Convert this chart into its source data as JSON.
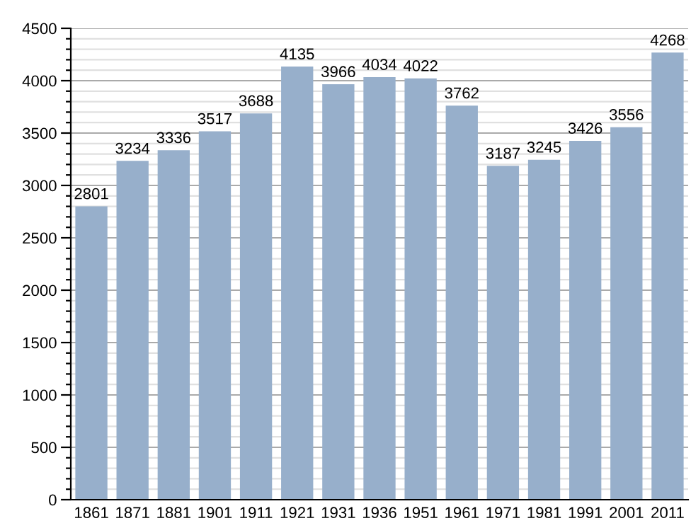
{
  "chart_data": {
    "type": "bar",
    "categories": [
      "1861",
      "1871",
      "1881",
      "1901",
      "1911",
      "1921",
      "1931",
      "1936",
      "1951",
      "1961",
      "1971",
      "1981",
      "1991",
      "2001",
      "2011"
    ],
    "values": [
      2801,
      3234,
      3336,
      3517,
      3688,
      4135,
      3966,
      4034,
      4022,
      3762,
      3187,
      3245,
      3426,
      3556,
      4268
    ],
    "color": "#97afcb",
    "data_labels": true,
    "ylim": [
      0,
      4500
    ],
    "yticks": [
      0,
      {
        "value": 100,
        "label": null
      },
      {
        "value": 200,
        "label": null
      },
      {
        "value": 300,
        "label": null
      },
      {
        "value": 400,
        "label": null
      },
      500,
      {
        "value": 600,
        "label": null
      },
      {
        "value": 700,
        "label": null
      },
      {
        "value": 800,
        "label": null
      },
      {
        "value": 900,
        "label": null
      },
      1000,
      {
        "value": 1100,
        "label": null
      },
      {
        "value": 1200,
        "label": null
      },
      {
        "value": 1300,
        "label": null
      },
      {
        "value": 1400,
        "label": null
      },
      1500,
      {
        "value": 1600,
        "label": null
      },
      {
        "value": 1700,
        "label": null
      },
      {
        "value": 1800,
        "label": null
      },
      {
        "value": 1900,
        "label": null
      },
      2000,
      {
        "value": 2100,
        "label": null
      },
      {
        "value": 2200,
        "label": null
      },
      {
        "value": 2300,
        "label": null
      },
      {
        "value": 2400,
        "label": null
      },
      2500,
      {
        "value": 2600,
        "label": null
      },
      {
        "value": 2700,
        "label": null
      },
      {
        "value": 2800,
        "label": null
      },
      {
        "value": 2900,
        "label": null
      },
      3000,
      {
        "value": 3100,
        "label": null
      },
      {
        "value": 3200,
        "label": null
      },
      {
        "value": 3300,
        "label": null
      },
      {
        "value": 3400,
        "label": null
      },
      3500,
      {
        "value": 3600,
        "label": null
      },
      {
        "value": 3700,
        "label": null
      },
      {
        "value": 3800,
        "label": null
      },
      {
        "value": 3900,
        "label": null
      },
      4000,
      {
        "value": 4100,
        "label": null
      },
      {
        "value": 4200,
        "label": null
      },
      {
        "value": 4300,
        "label": null
      },
      {
        "value": 4400,
        "label": null
      },
      4500
    ],
    "grid": "y"
  }
}
